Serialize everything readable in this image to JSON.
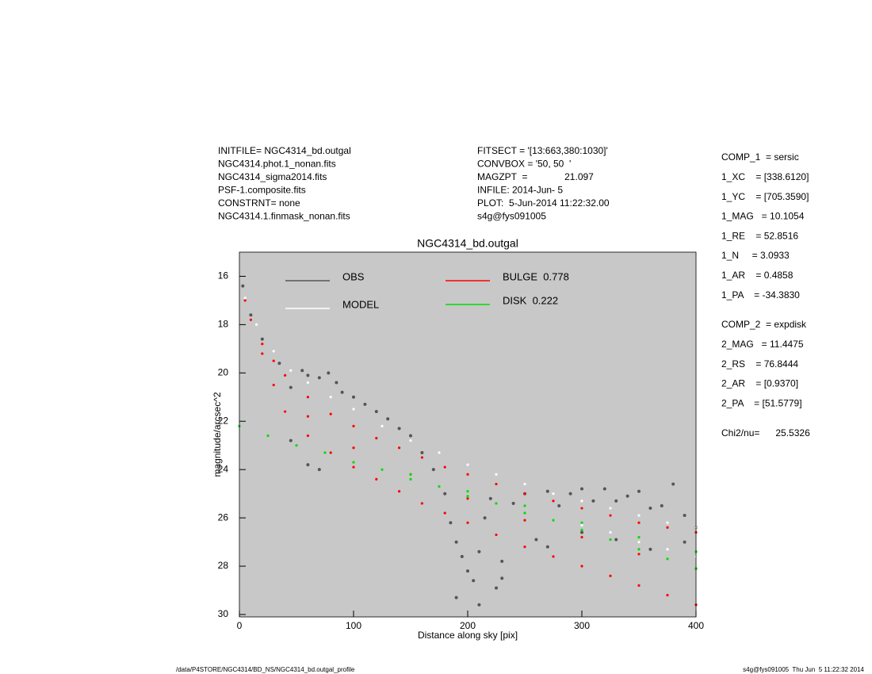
{
  "header": {
    "left": [
      "INITFILE= NGC4314_bd.outgal",
      "NGC4314.phot.1_nonan.fits",
      "NGC4314_sigma2014.fits",
      "PSF-1.composite.fits",
      "CONSTRNT= none",
      "NGC4314.1.finmask_nonan.fits"
    ],
    "middle": [
      "FITSECT = '[13:663,380:1030]'",
      "CONVBOX = '50, 50  '",
      "MAGZPT  =              21.097",
      "INFILE: 2014-Jun- 5",
      "PLOT:  5-Jun-2014 11:22:32.00",
      "s4g@fys091005"
    ]
  },
  "params": {
    "comp1": [
      "COMP_1  = sersic",
      "1_XC    = [338.6120]",
      "1_YC    = [705.3590]",
      "1_MAG   = 10.1054",
      "1_RE    = 52.8516",
      "1_N     = 3.0933",
      "1_AR    = 0.4858",
      "1_PA    = -34.3830"
    ],
    "comp2": [
      "COMP_2  = expdisk",
      "2_MAG   = 11.4475",
      "2_RS    = 76.8444",
      "2_AR    = [0.9370]",
      "2_PA    = [51.5779]"
    ],
    "chi2": "Chi2/nu=      25.5326"
  },
  "footer": {
    "left": "/data/P4STORE/NGC4314/BD_NS/NGC4314_bd.outgal_profile",
    "right": "s4g@fys091005  Thu Jun  5 11:22:32 2014"
  },
  "chart_data": {
    "type": "scatter",
    "title": "NGC4314_bd.outgal",
    "x_label": "Distance along sky [pix]",
    "y_label": "magnitude/arcsec^2",
    "xlim": [
      0,
      400
    ],
    "xticks": [
      0,
      100,
      200,
      300,
      400
    ],
    "ylim": [
      30.1,
      15
    ],
    "yticks": [
      16,
      18,
      20,
      22,
      24,
      26,
      28,
      30
    ],
    "background": "#c8c8c8",
    "series": [
      {
        "name": "OBS",
        "color": "#555555",
        "x": [
          3,
          10,
          20,
          35,
          45,
          55,
          60,
          70,
          78,
          85,
          90,
          100,
          110,
          120,
          130,
          140,
          150,
          160,
          170,
          180,
          185,
          190,
          195,
          200,
          205,
          210,
          215,
          220,
          225,
          230,
          240,
          250,
          260,
          270,
          280,
          290,
          300,
          310,
          320,
          330,
          340,
          350,
          360,
          370,
          380,
          390,
          400,
          60,
          70,
          45,
          190,
          210,
          230,
          270,
          300,
          330,
          360,
          390
        ],
        "values": [
          16.4,
          17.6,
          18.6,
          19.6,
          20.6,
          19.9,
          20.1,
          20.2,
          20.0,
          20.4,
          20.8,
          21.0,
          21.3,
          21.6,
          21.9,
          22.3,
          22.6,
          23.3,
          24.0,
          25.0,
          26.2,
          27.0,
          27.6,
          28.2,
          28.6,
          27.4,
          26.0,
          25.2,
          28.9,
          27.8,
          25.4,
          25.0,
          26.9,
          24.9,
          25.5,
          25.0,
          24.8,
          25.3,
          24.8,
          25.3,
          25.1,
          24.9,
          25.6,
          25.5,
          24.6,
          27.0,
          26.4,
          23.8,
          24.0,
          22.8,
          29.3,
          29.6,
          28.5,
          27.2,
          26.6,
          26.9,
          27.3,
          25.9
        ]
      },
      {
        "name": "MODEL",
        "color": "#ffffff",
        "x": [
          5,
          15,
          30,
          45,
          60,
          80,
          100,
          125,
          150,
          175,
          200,
          225,
          250,
          275,
          300,
          325,
          350,
          375,
          400,
          300,
          325,
          350,
          375,
          400
        ],
        "values": [
          16.9,
          18.0,
          19.1,
          19.9,
          20.4,
          21.0,
          21.5,
          22.2,
          22.8,
          23.3,
          23.8,
          24.2,
          24.6,
          25.0,
          25.3,
          25.6,
          25.9,
          26.2,
          26.4,
          26.3,
          26.6,
          27.0,
          27.3,
          27.6
        ]
      },
      {
        "name": "BULGE  0.778",
        "color": "#ff0000",
        "x": [
          5,
          10,
          20,
          30,
          40,
          60,
          80,
          100,
          120,
          140,
          160,
          180,
          200,
          225,
          250,
          275,
          300,
          325,
          350,
          375,
          400,
          20,
          30,
          40,
          60,
          80,
          100,
          120,
          140,
          160,
          180,
          200,
          225,
          250,
          275,
          300,
          325,
          350,
          375,
          400,
          60,
          100,
          150,
          200,
          250,
          300,
          350,
          400
        ],
        "values": [
          17.0,
          17.8,
          18.8,
          19.5,
          20.1,
          21.0,
          21.7,
          22.2,
          22.7,
          23.1,
          23.5,
          23.9,
          24.2,
          24.6,
          25.0,
          25.3,
          25.6,
          25.9,
          26.2,
          26.4,
          26.6,
          19.2,
          20.5,
          21.6,
          22.6,
          23.3,
          23.9,
          24.4,
          24.9,
          25.4,
          25.8,
          26.2,
          26.7,
          27.2,
          27.6,
          28.0,
          28.4,
          28.8,
          29.2,
          29.6,
          21.8,
          23.1,
          24.2,
          25.2,
          26.1,
          26.8,
          27.5,
          28.1
        ]
      },
      {
        "name": "DISK  0.222",
        "color": "#00dd00",
        "x": [
          0,
          25,
          50,
          75,
          100,
          125,
          150,
          175,
          200,
          225,
          250,
          275,
          300,
          325,
          350,
          375,
          400,
          150,
          200,
          250,
          300,
          350,
          400
        ],
        "values": [
          22.2,
          22.6,
          23.0,
          23.3,
          23.7,
          24.0,
          24.4,
          24.7,
          25.1,
          25.4,
          25.8,
          26.1,
          26.5,
          26.9,
          27.3,
          27.7,
          28.1,
          24.2,
          24.9,
          25.5,
          26.2,
          26.8,
          27.4
        ]
      }
    ]
  }
}
